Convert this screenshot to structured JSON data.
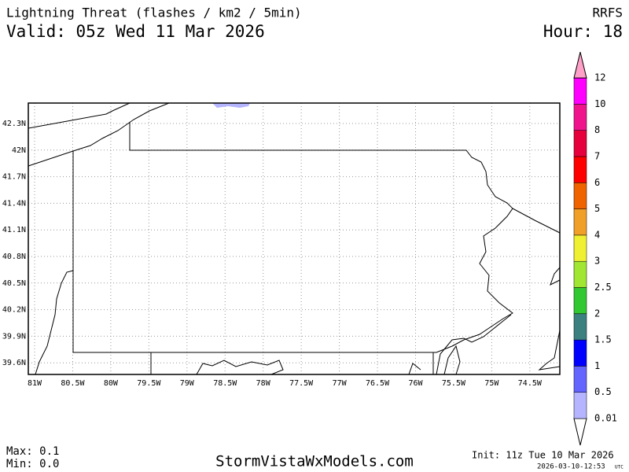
{
  "header": {
    "title": "Lightning Threat (flashes / km2 / 5min)",
    "valid": "Valid: 05z Wed 11 Mar 2026",
    "model": "RRFS",
    "hour": "Hour: 18"
  },
  "map": {
    "latitude_labels": [
      "42.3N",
      "42N",
      "41.7N",
      "41.4N",
      "41.1N",
      "40.8N",
      "40.5N",
      "40.2N",
      "39.9N",
      "39.6N"
    ],
    "longitude_labels": [
      "81W",
      "80.5W",
      "80W",
      "79.5W",
      "79W",
      "78.5W",
      "78W",
      "77.5W",
      "77W",
      "76.5W",
      "76W",
      "75.5W",
      "75W",
      "74.5W"
    ]
  },
  "colorbar": {
    "labels": [
      "0.01",
      "0.5",
      "1",
      "1.5",
      "2",
      "2.5",
      "3",
      "4",
      "5",
      "6",
      "7",
      "8",
      "10",
      "12"
    ],
    "colors": [
      "#ffffff",
      "#b4b4ff",
      "#6464ff",
      "#0000ff",
      "#3c8080",
      "#32c832",
      "#a0e632",
      "#f0f032",
      "#f0a028",
      "#f06400",
      "#ff0000",
      "#e6003c",
      "#f0148c",
      "#ff00ff",
      "#ffa0c8"
    ]
  },
  "footer": {
    "max": "Max: 0.1",
    "min": "Min: 0.0",
    "site": "StormVistaWxModels.com",
    "init": "Init: 11z Tue 10 Mar 2026",
    "timestamp": "2026-03-10-12:53",
    "timestamp_unit": "UTC"
  }
}
